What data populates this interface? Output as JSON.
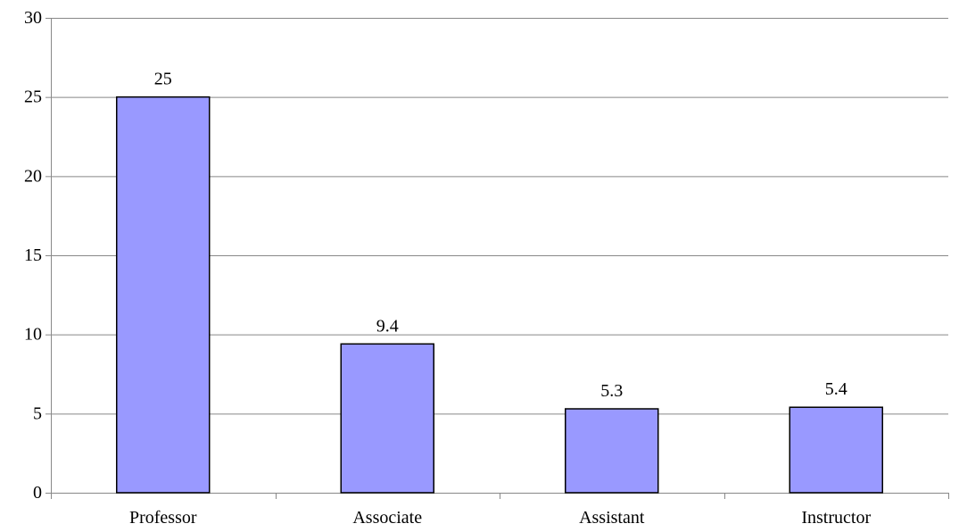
{
  "chart_data": {
    "type": "bar",
    "title": "",
    "xlabel": "",
    "ylabel": "",
    "categories": [
      "Professor",
      "Associate",
      "Assistant",
      "Instructor"
    ],
    "values": [
      25,
      9.4,
      5.3,
      5.4
    ],
    "data_labels": [
      "25",
      "9.4",
      "5.3",
      "5.4"
    ],
    "ylim": [
      0,
      30
    ],
    "yticks": [
      0,
      5,
      10,
      15,
      20,
      25,
      30
    ],
    "ytick_labels": [
      "0",
      "5",
      "10",
      "15",
      "20",
      "25",
      "30"
    ],
    "grid": true,
    "legend": "none",
    "colors": {
      "bar_fill": "#9999FF",
      "bar_stroke": "#000000",
      "grid": "#888888",
      "axis": "#888888"
    }
  }
}
